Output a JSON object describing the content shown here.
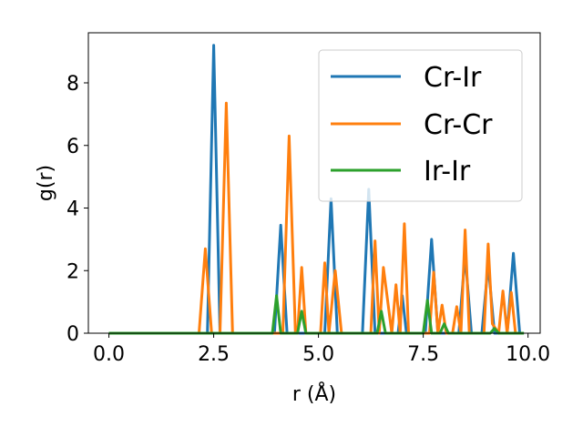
{
  "chart_data": {
    "type": "line",
    "xlabel": "r (Å)",
    "ylabel": "g(r)",
    "xlim": [
      -0.49,
      10.29
    ],
    "ylim": [
      0,
      9.6
    ],
    "xticks": [
      0.0,
      2.5,
      5.0,
      7.5,
      10.0
    ],
    "xtick_labels": [
      "0.0",
      "2.5",
      "5.0",
      "7.5",
      "10.0"
    ],
    "yticks": [
      0,
      2,
      4,
      6,
      8
    ],
    "ytick_labels": [
      "0",
      "2",
      "4",
      "6",
      "8"
    ],
    "grid": false,
    "legend_position": "top-right",
    "series": [
      {
        "name": "Cr-Ir",
        "color": "#1f77b4",
        "x": [
          0.0,
          2.35,
          2.5,
          2.65,
          3.95,
          4.1,
          4.25,
          5.15,
          5.3,
          5.45,
          6.05,
          6.2,
          6.35,
          6.9,
          7.0,
          7.1,
          7.55,
          7.7,
          7.85,
          8.35,
          8.5,
          8.65,
          8.9,
          9.05,
          9.2,
          9.5,
          9.65,
          9.8,
          9.9
        ],
        "y": [
          0,
          0,
          9.2,
          0,
          0,
          3.45,
          0,
          0,
          4.3,
          0,
          0,
          4.6,
          0,
          0,
          1.2,
          0,
          0,
          3.0,
          0,
          0,
          2.5,
          0,
          0,
          2.2,
          0,
          0,
          2.55,
          0,
          0
        ]
      },
      {
        "name": "Cr-Cr",
        "color": "#ff7f0e",
        "x": [
          0.0,
          2.15,
          2.3,
          2.45,
          2.65,
          2.8,
          2.95,
          4.15,
          4.3,
          4.45,
          4.5,
          4.6,
          4.7,
          5.05,
          5.15,
          5.25,
          5.4,
          5.55,
          6.25,
          6.35,
          6.45,
          6.55,
          6.75,
          6.85,
          6.95,
          7.05,
          7.15,
          7.65,
          7.75,
          7.85,
          7.95,
          8.05,
          8.2,
          8.3,
          8.4,
          8.5,
          8.6,
          8.95,
          9.05,
          9.15,
          9.3,
          9.4,
          9.5,
          9.6,
          9.7,
          9.8,
          9.85
        ],
        "y": [
          0,
          0,
          2.7,
          0,
          0,
          7.35,
          0,
          0,
          6.3,
          0,
          0,
          2.1,
          0,
          0,
          2.25,
          0,
          2.0,
          0,
          0,
          2.95,
          0,
          2.1,
          0,
          1.55,
          0,
          3.5,
          0,
          0,
          1.95,
          0,
          0.9,
          0,
          0,
          0.85,
          0,
          3.3,
          0,
          0,
          2.85,
          0.3,
          0,
          1.35,
          0,
          1.3,
          0,
          0,
          0
        ]
      },
      {
        "name": "Ir-Ir",
        "color": "#2ca02c",
        "x": [
          0.0,
          3.9,
          4.0,
          4.1,
          4.5,
          4.6,
          4.7,
          6.4,
          6.5,
          6.6,
          7.5,
          7.6,
          7.7,
          7.9,
          8.0,
          8.1,
          9.1,
          9.2,
          9.3,
          9.9
        ],
        "y": [
          0,
          0,
          1.2,
          0,
          0,
          0.7,
          0,
          0,
          0.7,
          0,
          0,
          1.05,
          0,
          0,
          0.3,
          0,
          0,
          0.15,
          0,
          0
        ]
      }
    ]
  }
}
